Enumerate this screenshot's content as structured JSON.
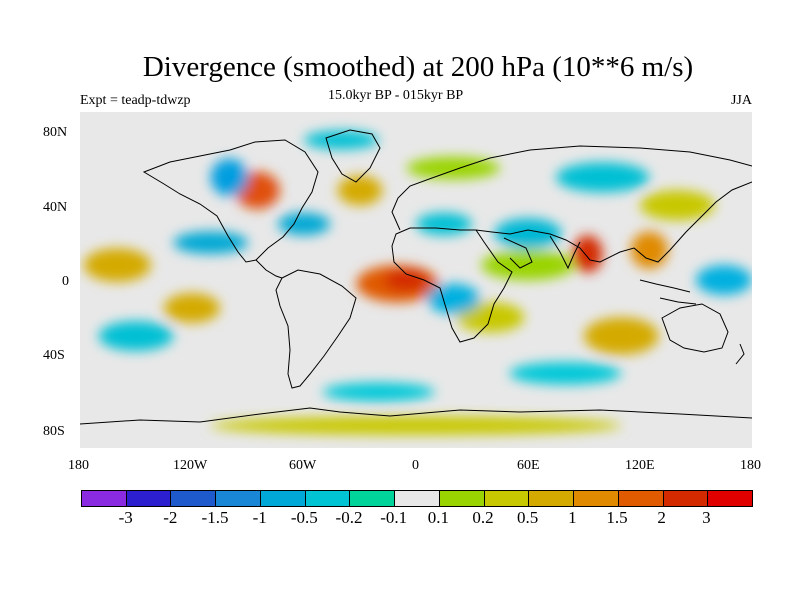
{
  "title": "Divergence (smoothed) at 200 hPa (10**6 m/s)",
  "experiment": "Expt = teadp-tdwzp",
  "period": "15.0kyr BP - 015kyr BP",
  "season": "JJA",
  "map": {
    "projection": "cylindrical equidistant",
    "lon_range": [
      -180,
      180
    ],
    "lat_range": [
      -90,
      90
    ],
    "lat_ticks": [
      "80N",
      "40N",
      "0",
      "40S",
      "80S"
    ],
    "lon_ticks": [
      "180",
      "120W",
      "60W",
      "0",
      "60E",
      "120E",
      "180"
    ],
    "field_blobs": [
      {
        "lon": -10,
        "lat": -2,
        "rx": 22,
        "ry": 10,
        "color": "#e05a00"
      },
      {
        "lon": -5,
        "lat": 0,
        "rx": 12,
        "ry": 6,
        "color": "#d32a00"
      },
      {
        "lon": -85,
        "lat": 48,
        "rx": 12,
        "ry": 10,
        "color": "#e0500a"
      },
      {
        "lon": 92,
        "lat": 14,
        "rx": 8,
        "ry": 10,
        "color": "#d32a00"
      },
      {
        "lon": 125,
        "lat": 16,
        "rx": 10,
        "ry": 10,
        "color": "#e08a00"
      },
      {
        "lon": -160,
        "lat": 8,
        "rx": 18,
        "ry": 9,
        "color": "#d4aa00"
      },
      {
        "lon": 60,
        "lat": 8,
        "rx": 25,
        "ry": 8,
        "color": "#9ad400"
      },
      {
        "lon": 110,
        "lat": -30,
        "rx": 20,
        "ry": 10,
        "color": "#d4aa00"
      },
      {
        "lon": 40,
        "lat": -20,
        "rx": 18,
        "ry": 8,
        "color": "#c8c800"
      },
      {
        "lon": 20,
        "lat": 60,
        "rx": 25,
        "ry": 6,
        "color": "#9ad400"
      },
      {
        "lon": -30,
        "lat": 48,
        "rx": 12,
        "ry": 8,
        "color": "#d4aa00"
      },
      {
        "lon": 140,
        "lat": 40,
        "rx": 20,
        "ry": 8,
        "color": "#c8c800"
      },
      {
        "lon": -120,
        "lat": -15,
        "rx": 15,
        "ry": 8,
        "color": "#d4aa00"
      },
      {
        "lon": 0,
        "lat": -78,
        "rx": 110,
        "ry": 5,
        "color": "#c8c800"
      },
      {
        "lon": -60,
        "lat": 30,
        "rx": 14,
        "ry": 6,
        "color": "#00a8d4"
      },
      {
        "lon": -100,
        "lat": 55,
        "rx": 10,
        "ry": 10,
        "color": "#009ee0"
      },
      {
        "lon": 15,
        "lat": 30,
        "rx": 15,
        "ry": 6,
        "color": "#00c0d4"
      },
      {
        "lon": 60,
        "lat": 25,
        "rx": 18,
        "ry": 8,
        "color": "#00b8d4"
      },
      {
        "lon": 20,
        "lat": -10,
        "rx": 14,
        "ry": 8,
        "color": "#00b0e0"
      },
      {
        "lon": 165,
        "lat": 0,
        "rx": 15,
        "ry": 8,
        "color": "#00b0e0"
      },
      {
        "lon": -150,
        "lat": -30,
        "rx": 20,
        "ry": 8,
        "color": "#00c0d4"
      },
      {
        "lon": 80,
        "lat": -50,
        "rx": 30,
        "ry": 6,
        "color": "#00c8d8"
      },
      {
        "lon": -20,
        "lat": -60,
        "rx": 30,
        "ry": 5,
        "color": "#00c8d8"
      },
      {
        "lon": -110,
        "lat": 20,
        "rx": 20,
        "ry": 6,
        "color": "#00a8d4"
      },
      {
        "lon": 100,
        "lat": 55,
        "rx": 25,
        "ry": 8,
        "color": "#00c0d4"
      },
      {
        "lon": -40,
        "lat": 75,
        "rx": 20,
        "ry": 5,
        "color": "#00c0d4"
      }
    ]
  },
  "colorbar": {
    "colors": [
      "#8a2be2",
      "#2b1fd0",
      "#1f5acd",
      "#1a87d6",
      "#00a8d8",
      "#00c4d4",
      "#00d49a",
      "#e8e8e8",
      "#9ad400",
      "#c8c800",
      "#d4aa00",
      "#e08a00",
      "#e05a00",
      "#d32a00",
      "#e00000"
    ],
    "labels": [
      "-3",
      "-2",
      "-1.5",
      "-1",
      "-0.5",
      "-0.2",
      "-0.1",
      "0.1",
      "0.2",
      "0.5",
      "1",
      "1.5",
      "2",
      "3"
    ]
  }
}
